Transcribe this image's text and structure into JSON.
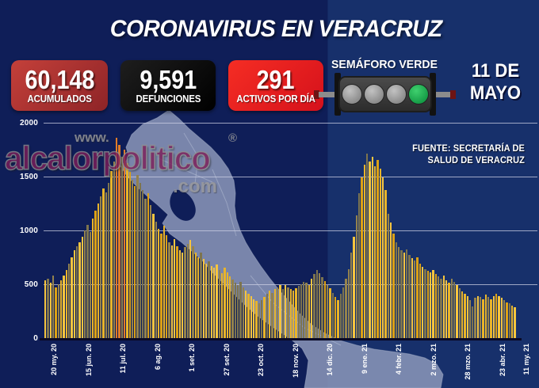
{
  "title": "CORONAVIRUS EN VERACRUZ",
  "stats": [
    {
      "value": "60,148",
      "label": "ACUMULADOS",
      "bg_from": "#c4403a",
      "bg_to": "#8e2427"
    },
    {
      "value": "9,591",
      "label": "DEFUNCIONES",
      "bg_from": "#1e1e1e",
      "bg_to": "#000000"
    },
    {
      "value": "291",
      "label": "ACTIVOS POR DÍA",
      "bg_from": "#f52d24",
      "bg_to": "#d5111b"
    }
  ],
  "semaforo": {
    "label": "SEMÁFORO VERDE",
    "lights": [
      "gray",
      "gray",
      "gray",
      "green"
    ],
    "green_color": "#17a94e"
  },
  "date": {
    "line1": "11 DE",
    "line2": "MAYO"
  },
  "source": {
    "line1": "FUENTE: SECRETARÍA DE",
    "line2": "SALUD DE VERACRUZ"
  },
  "watermark": {
    "www": "www.",
    "name": "alcalorpolitico",
    "reg": "®",
    "com": ".com"
  },
  "colors": {
    "bg_left": "#0f1e58",
    "bg_right": "#17306b",
    "banner_red": "#e22329",
    "map_fill": "#8c98ba",
    "gridline": "rgba(205,208,228,0.75)"
  },
  "chart_data": {
    "type": "bar",
    "title": "",
    "xlabel": "",
    "ylabel": "",
    "ylim": [
      0,
      2000
    ],
    "yticks": [
      0,
      500,
      1000,
      1500,
      2000
    ],
    "grid": true,
    "legend": false,
    "sample_interval_days": 2,
    "total_days": 356,
    "x_ticks": [
      {
        "label": "20 my. 20",
        "day": 0
      },
      {
        "label": "15 jun. 20",
        "day": 26
      },
      {
        "label": "11 jul. 20",
        "day": 52
      },
      {
        "label": "6 ag. 20",
        "day": 78
      },
      {
        "label": "1 set. 20",
        "day": 104
      },
      {
        "label": "27 set. 20",
        "day": 130
      },
      {
        "label": "23 oct. 20",
        "day": 156
      },
      {
        "label": "18 nov. 20",
        "day": 182
      },
      {
        "label": "14 dic. 20",
        "day": 208
      },
      {
        "label": "9 ene. 21",
        "day": 234
      },
      {
        "label": "4 febr. 21",
        "day": 260
      },
      {
        "label": "2 mzo. 21",
        "day": 286
      },
      {
        "label": "28 mzo. 21",
        "day": 312
      },
      {
        "label": "23 abr. 21",
        "day": 338
      },
      {
        "label": "11 my. 21",
        "day": 356
      }
    ],
    "values": [
      545,
      560,
      520,
      590,
      480,
      505,
      545,
      590,
      640,
      700,
      760,
      820,
      860,
      900,
      950,
      1010,
      1060,
      990,
      1120,
      1190,
      1260,
      1320,
      1400,
      1360,
      1450,
      1560,
      1650,
      1870,
      1800,
      1690,
      1760,
      1630,
      1550,
      1480,
      1420,
      1520,
      1450,
      1380,
      1300,
      1350,
      1240,
      1160,
      1090,
      1020,
      980,
      1050,
      960,
      900,
      870,
      930,
      860,
      820,
      800,
      850,
      880,
      920,
      860,
      800,
      760,
      800,
      740,
      700,
      720,
      680,
      660,
      690,
      640,
      610,
      660,
      620,
      580,
      550,
      520,
      500,
      530,
      480,
      450,
      420,
      400,
      370,
      350,
      330,
      360,
      390,
      420,
      450,
      430,
      460,
      480,
      500,
      460,
      500,
      480,
      460,
      450,
      470,
      490,
      510,
      530,
      520,
      500,
      560,
      600,
      640,
      610,
      570,
      540,
      500,
      470,
      430,
      390,
      360,
      420,
      480,
      560,
      650,
      800,
      950,
      1150,
      1350,
      1500,
      1620,
      1720,
      1650,
      1690,
      1600,
      1660,
      1580,
      1500,
      1380,
      1160,
      1080,
      980,
      900,
      850,
      820,
      800,
      830,
      780,
      750,
      730,
      760,
      700,
      670,
      650,
      630,
      615,
      640,
      600,
      580,
      560,
      590,
      545,
      520,
      560,
      530,
      500,
      470,
      440,
      420,
      400,
      360,
      300,
      380,
      400,
      390,
      370,
      410,
      390,
      370,
      395,
      420,
      400,
      380,
      360,
      340,
      330,
      310,
      291
    ],
    "bar_palette": [
      "#f6c53f",
      "#dca115",
      "#93824d",
      "#e8b42a",
      "#7d744e"
    ],
    "bar_peak_color": "#e07b28"
  }
}
